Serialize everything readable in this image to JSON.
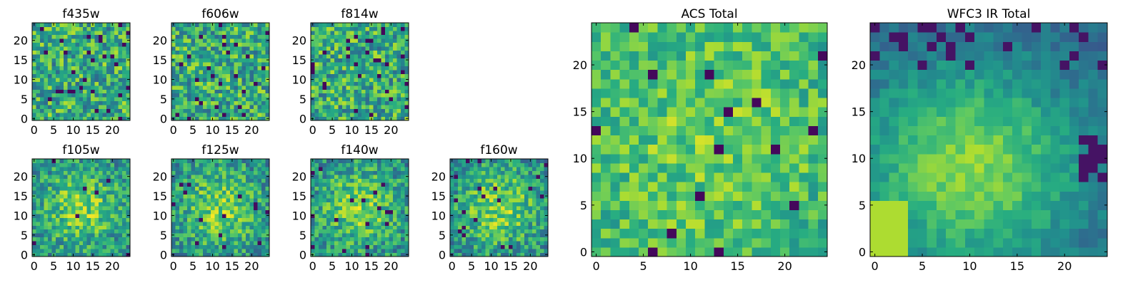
{
  "figure": {
    "colormap": "viridis",
    "colormap_stops": [
      "#440154",
      "#472f7d",
      "#3b518b",
      "#2c718e",
      "#21908d",
      "#27ad81",
      "#5cc863",
      "#aadc32",
      "#fde725"
    ],
    "background": "#ffffff"
  },
  "chart_data": [
    {
      "id": "f435w",
      "type": "heatmap",
      "title": "f435w",
      "grid_size": 25,
      "xlim": [
        0,
        24
      ],
      "ylim": [
        0,
        24
      ],
      "xticks": [
        0,
        5,
        10,
        15,
        20
      ],
      "yticks": [
        0,
        5,
        10,
        15,
        20
      ],
      "pattern": "noisy",
      "seed": 11,
      "grid": false
    },
    {
      "id": "f606w",
      "type": "heatmap",
      "title": "f606w",
      "grid_size": 25,
      "xlim": [
        0,
        24
      ],
      "ylim": [
        0,
        24
      ],
      "xticks": [
        0,
        5,
        10,
        15,
        20
      ],
      "yticks": [
        0,
        5,
        10,
        15,
        20
      ],
      "pattern": "noisy",
      "seed": 23,
      "grid": false
    },
    {
      "id": "f814w",
      "type": "heatmap",
      "title": "f814w",
      "grid_size": 25,
      "xlim": [
        0,
        24
      ],
      "ylim": [
        0,
        24
      ],
      "xticks": [
        0,
        5,
        10,
        15,
        20
      ],
      "yticks": [
        0,
        5,
        10,
        15,
        20
      ],
      "pattern": "noisy",
      "seed": 37,
      "grid": false
    },
    {
      "id": "f105w",
      "type": "heatmap",
      "title": "f105w",
      "grid_size": 25,
      "xlim": [
        0,
        24
      ],
      "ylim": [
        0,
        24
      ],
      "xticks": [
        0,
        5,
        10,
        15,
        20
      ],
      "yticks": [
        0,
        5,
        10,
        15,
        20
      ],
      "pattern": "blob",
      "seed": 41,
      "grid": false
    },
    {
      "id": "f125w",
      "type": "heatmap",
      "title": "f125w",
      "grid_size": 25,
      "xlim": [
        0,
        24
      ],
      "ylim": [
        0,
        24
      ],
      "xticks": [
        0,
        5,
        10,
        15,
        20
      ],
      "yticks": [
        0,
        5,
        10,
        15,
        20
      ],
      "pattern": "blob",
      "seed": 53,
      "grid": false
    },
    {
      "id": "f140w",
      "type": "heatmap",
      "title": "f140w",
      "grid_size": 25,
      "xlim": [
        0,
        24
      ],
      "ylim": [
        0,
        24
      ],
      "xticks": [
        0,
        5,
        10,
        15,
        20
      ],
      "yticks": [
        0,
        5,
        10,
        15,
        20
      ],
      "pattern": "blob",
      "seed": 67,
      "grid": false
    },
    {
      "id": "f160w",
      "type": "heatmap",
      "title": "f160w",
      "grid_size": 25,
      "xlim": [
        0,
        24
      ],
      "ylim": [
        0,
        24
      ],
      "xticks": [
        0,
        5,
        10,
        15,
        20
      ],
      "yticks": [
        0,
        5,
        10,
        15,
        20
      ],
      "pattern": "blob",
      "seed": 79,
      "grid": false
    },
    {
      "id": "acs_total",
      "type": "heatmap",
      "title": "ACS Total",
      "grid_size": 25,
      "xlim": [
        0,
        24
      ],
      "ylim": [
        0,
        24
      ],
      "xticks": [
        0,
        5,
        10,
        15,
        20
      ],
      "yticks": [
        0,
        5,
        10,
        15,
        20
      ],
      "pattern": "acs",
      "seed": 97,
      "grid": false
    },
    {
      "id": "wfc3_ir_total",
      "type": "heatmap",
      "title": "WFC3 IR Total",
      "grid_size": 25,
      "xlim": [
        0,
        24
      ],
      "ylim": [
        0,
        24
      ],
      "xticks": [
        0,
        5,
        10,
        15,
        20
      ],
      "yticks": [
        0,
        5,
        10,
        15,
        20
      ],
      "pattern": "ir",
      "seed": 113,
      "grid": false
    }
  ]
}
